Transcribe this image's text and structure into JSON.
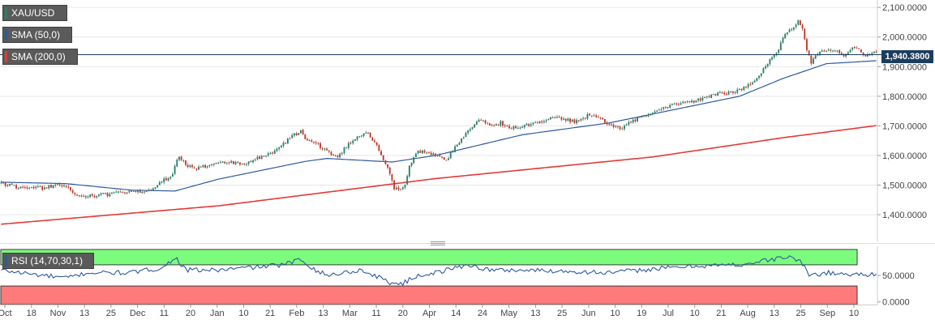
{
  "symbol_legend": {
    "label": "XAU/USD",
    "color": "#2e7d6b"
  },
  "indicators": [
    {
      "label": "SMA (50,0)",
      "color": "#2c5aa0"
    },
    {
      "label": "SMA (200,0)",
      "color": "#e53935"
    }
  ],
  "current_price": "1,940.3800",
  "rsi_legend": {
    "label": "RSI (14,70,30,1)",
    "color": "#2c5aa0"
  },
  "colors": {
    "bull": "#2e7d6b",
    "bear": "#c0392b",
    "sma50": "#2c5aa0",
    "sma200": "#e53935",
    "rsi_line": "#2c5aa0",
    "rsi_overbought_zone": "#7cfc7c",
    "rsi_oversold_zone": "#ff7a7a",
    "grid": "#e6e6e6",
    "price_line": "#1c3d5c"
  },
  "chart_data": [
    {
      "type": "candlestick",
      "title": "XAU/USD",
      "x_ticks": [
        "Oct",
        "18",
        "Nov",
        "13",
        "25",
        "Dec",
        "11",
        "20",
        "Jan",
        "10",
        "21",
        "Feb",
        "13",
        "Mar",
        "11",
        "20",
        "Apr",
        "14",
        "24",
        "May",
        "13",
        "25",
        "Jun",
        "10",
        "19",
        "Jul",
        "10",
        "21",
        "Aug",
        "13",
        "25",
        "Sep",
        "10"
      ],
      "y_ticks": [
        "2,100.0000",
        "2,000.0000",
        "1,900.0000",
        "1,800.0000",
        "1,700.0000",
        "1,600.0000",
        "1,500.0000",
        "1,400.0000"
      ],
      "ylim": [
        1310,
        2125
      ],
      "grid": true,
      "current_price": 1940.38,
      "close_keypoints": [
        [
          0,
          1505
        ],
        [
          10,
          1490
        ],
        [
          20,
          1490
        ],
        [
          25,
          1500
        ],
        [
          30,
          1500
        ],
        [
          35,
          1465
        ],
        [
          40,
          1462
        ],
        [
          50,
          1470
        ],
        [
          60,
          1480
        ],
        [
          65,
          1476
        ],
        [
          70,
          1490
        ],
        [
          75,
          1520
        ],
        [
          78,
          1525
        ],
        [
          80,
          1560
        ],
        [
          82,
          1600
        ],
        [
          85,
          1570
        ],
        [
          90,
          1556
        ],
        [
          95,
          1565
        ],
        [
          100,
          1575
        ],
        [
          105,
          1580
        ],
        [
          110,
          1570
        ],
        [
          115,
          1580
        ],
        [
          120,
          1598
        ],
        [
          125,
          1610
        ],
        [
          130,
          1640
        ],
        [
          135,
          1670
        ],
        [
          138,
          1680
        ],
        [
          140,
          1655
        ],
        [
          145,
          1640
        ],
        [
          150,
          1615
        ],
        [
          155,
          1595
        ],
        [
          160,
          1640
        ],
        [
          165,
          1665
        ],
        [
          168,
          1680
        ],
        [
          170,
          1660
        ],
        [
          173,
          1640
        ],
        [
          175,
          1595
        ],
        [
          178,
          1555
        ],
        [
          181,
          1490
        ],
        [
          184,
          1480
        ],
        [
          186,
          1500
        ],
        [
          188,
          1560
        ],
        [
          191,
          1610
        ],
        [
          195,
          1615
        ],
        [
          200,
          1600
        ],
        [
          205,
          1585
        ],
        [
          210,
          1640
        ],
        [
          215,
          1680
        ],
        [
          220,
          1720
        ],
        [
          225,
          1700
        ],
        [
          230,
          1710
        ],
        [
          235,
          1695
        ],
        [
          240,
          1700
        ],
        [
          245,
          1705
        ],
        [
          250,
          1720
        ],
        [
          255,
          1730
        ],
        [
          260,
          1720
        ],
        [
          265,
          1715
        ],
        [
          270,
          1735
        ],
        [
          275,
          1725
        ],
        [
          280,
          1705
        ],
        [
          285,
          1690
        ],
        [
          290,
          1715
        ],
        [
          295,
          1730
        ],
        [
          300,
          1740
        ],
        [
          305,
          1760
        ],
        [
          310,
          1775
        ],
        [
          315,
          1780
        ],
        [
          320,
          1785
        ],
        [
          325,
          1795
        ],
        [
          330,
          1810
        ],
        [
          335,
          1810
        ],
        [
          340,
          1820
        ],
        [
          345,
          1840
        ],
        [
          350,
          1880
        ],
        [
          355,
          1930
        ],
        [
          358,
          1960
        ],
        [
          361,
          2010
        ],
        [
          364,
          2030
        ],
        [
          367,
          2055
        ],
        [
          369,
          2025
        ],
        [
          371,
          1955
        ],
        [
          373,
          1915
        ],
        [
          375,
          1935
        ],
        [
          378,
          1960
        ],
        [
          380,
          1950
        ],
        [
          383,
          1960
        ],
        [
          385,
          1955
        ],
        [
          388,
          1935
        ],
        [
          390,
          1945
        ],
        [
          392,
          1965
        ],
        [
          395,
          1960
        ],
        [
          397,
          1935
        ],
        [
          400,
          1945
        ],
        [
          403,
          1950
        ]
      ],
      "sma50_keypoints": [
        [
          0,
          1510
        ],
        [
          30,
          1505
        ],
        [
          60,
          1483
        ],
        [
          80,
          1480
        ],
        [
          100,
          1520
        ],
        [
          140,
          1580
        ],
        [
          150,
          1590
        ],
        [
          180,
          1578
        ],
        [
          200,
          1600
        ],
        [
          240,
          1670
        ],
        [
          280,
          1710
        ],
        [
          320,
          1770
        ],
        [
          340,
          1800
        ],
        [
          360,
          1860
        ],
        [
          380,
          1910
        ],
        [
          403,
          1920
        ]
      ],
      "sma200_keypoints": [
        [
          0,
          1368
        ],
        [
          100,
          1430
        ],
        [
          200,
          1522
        ],
        [
          300,
          1595
        ],
        [
          360,
          1660
        ],
        [
          403,
          1701
        ]
      ]
    },
    {
      "type": "line",
      "title": "RSI (14,70,30,1)",
      "y_ticks": [
        "50.0000",
        "0.0000"
      ],
      "ylim": [
        -5,
        105
      ],
      "levels": [
        30,
        70
      ],
      "rsi_keypoints": [
        [
          0,
          60
        ],
        [
          15,
          52
        ],
        [
          30,
          45
        ],
        [
          40,
          55
        ],
        [
          60,
          55
        ],
        [
          75,
          65
        ],
        [
          80,
          85
        ],
        [
          85,
          60
        ],
        [
          100,
          60
        ],
        [
          130,
          70
        ],
        [
          138,
          80
        ],
        [
          145,
          60
        ],
        [
          150,
          50
        ],
        [
          165,
          60
        ],
        [
          172,
          50
        ],
        [
          180,
          35
        ],
        [
          185,
          35
        ],
        [
          192,
          50
        ],
        [
          200,
          55
        ],
        [
          215,
          70
        ],
        [
          225,
          60
        ],
        [
          240,
          60
        ],
        [
          260,
          58
        ],
        [
          280,
          55
        ],
        [
          300,
          62
        ],
        [
          320,
          68
        ],
        [
          340,
          70
        ],
        [
          355,
          80
        ],
        [
          362,
          85
        ],
        [
          368,
          78
        ],
        [
          372,
          50
        ],
        [
          380,
          55
        ],
        [
          390,
          52
        ],
        [
          403,
          52
        ]
      ]
    }
  ]
}
